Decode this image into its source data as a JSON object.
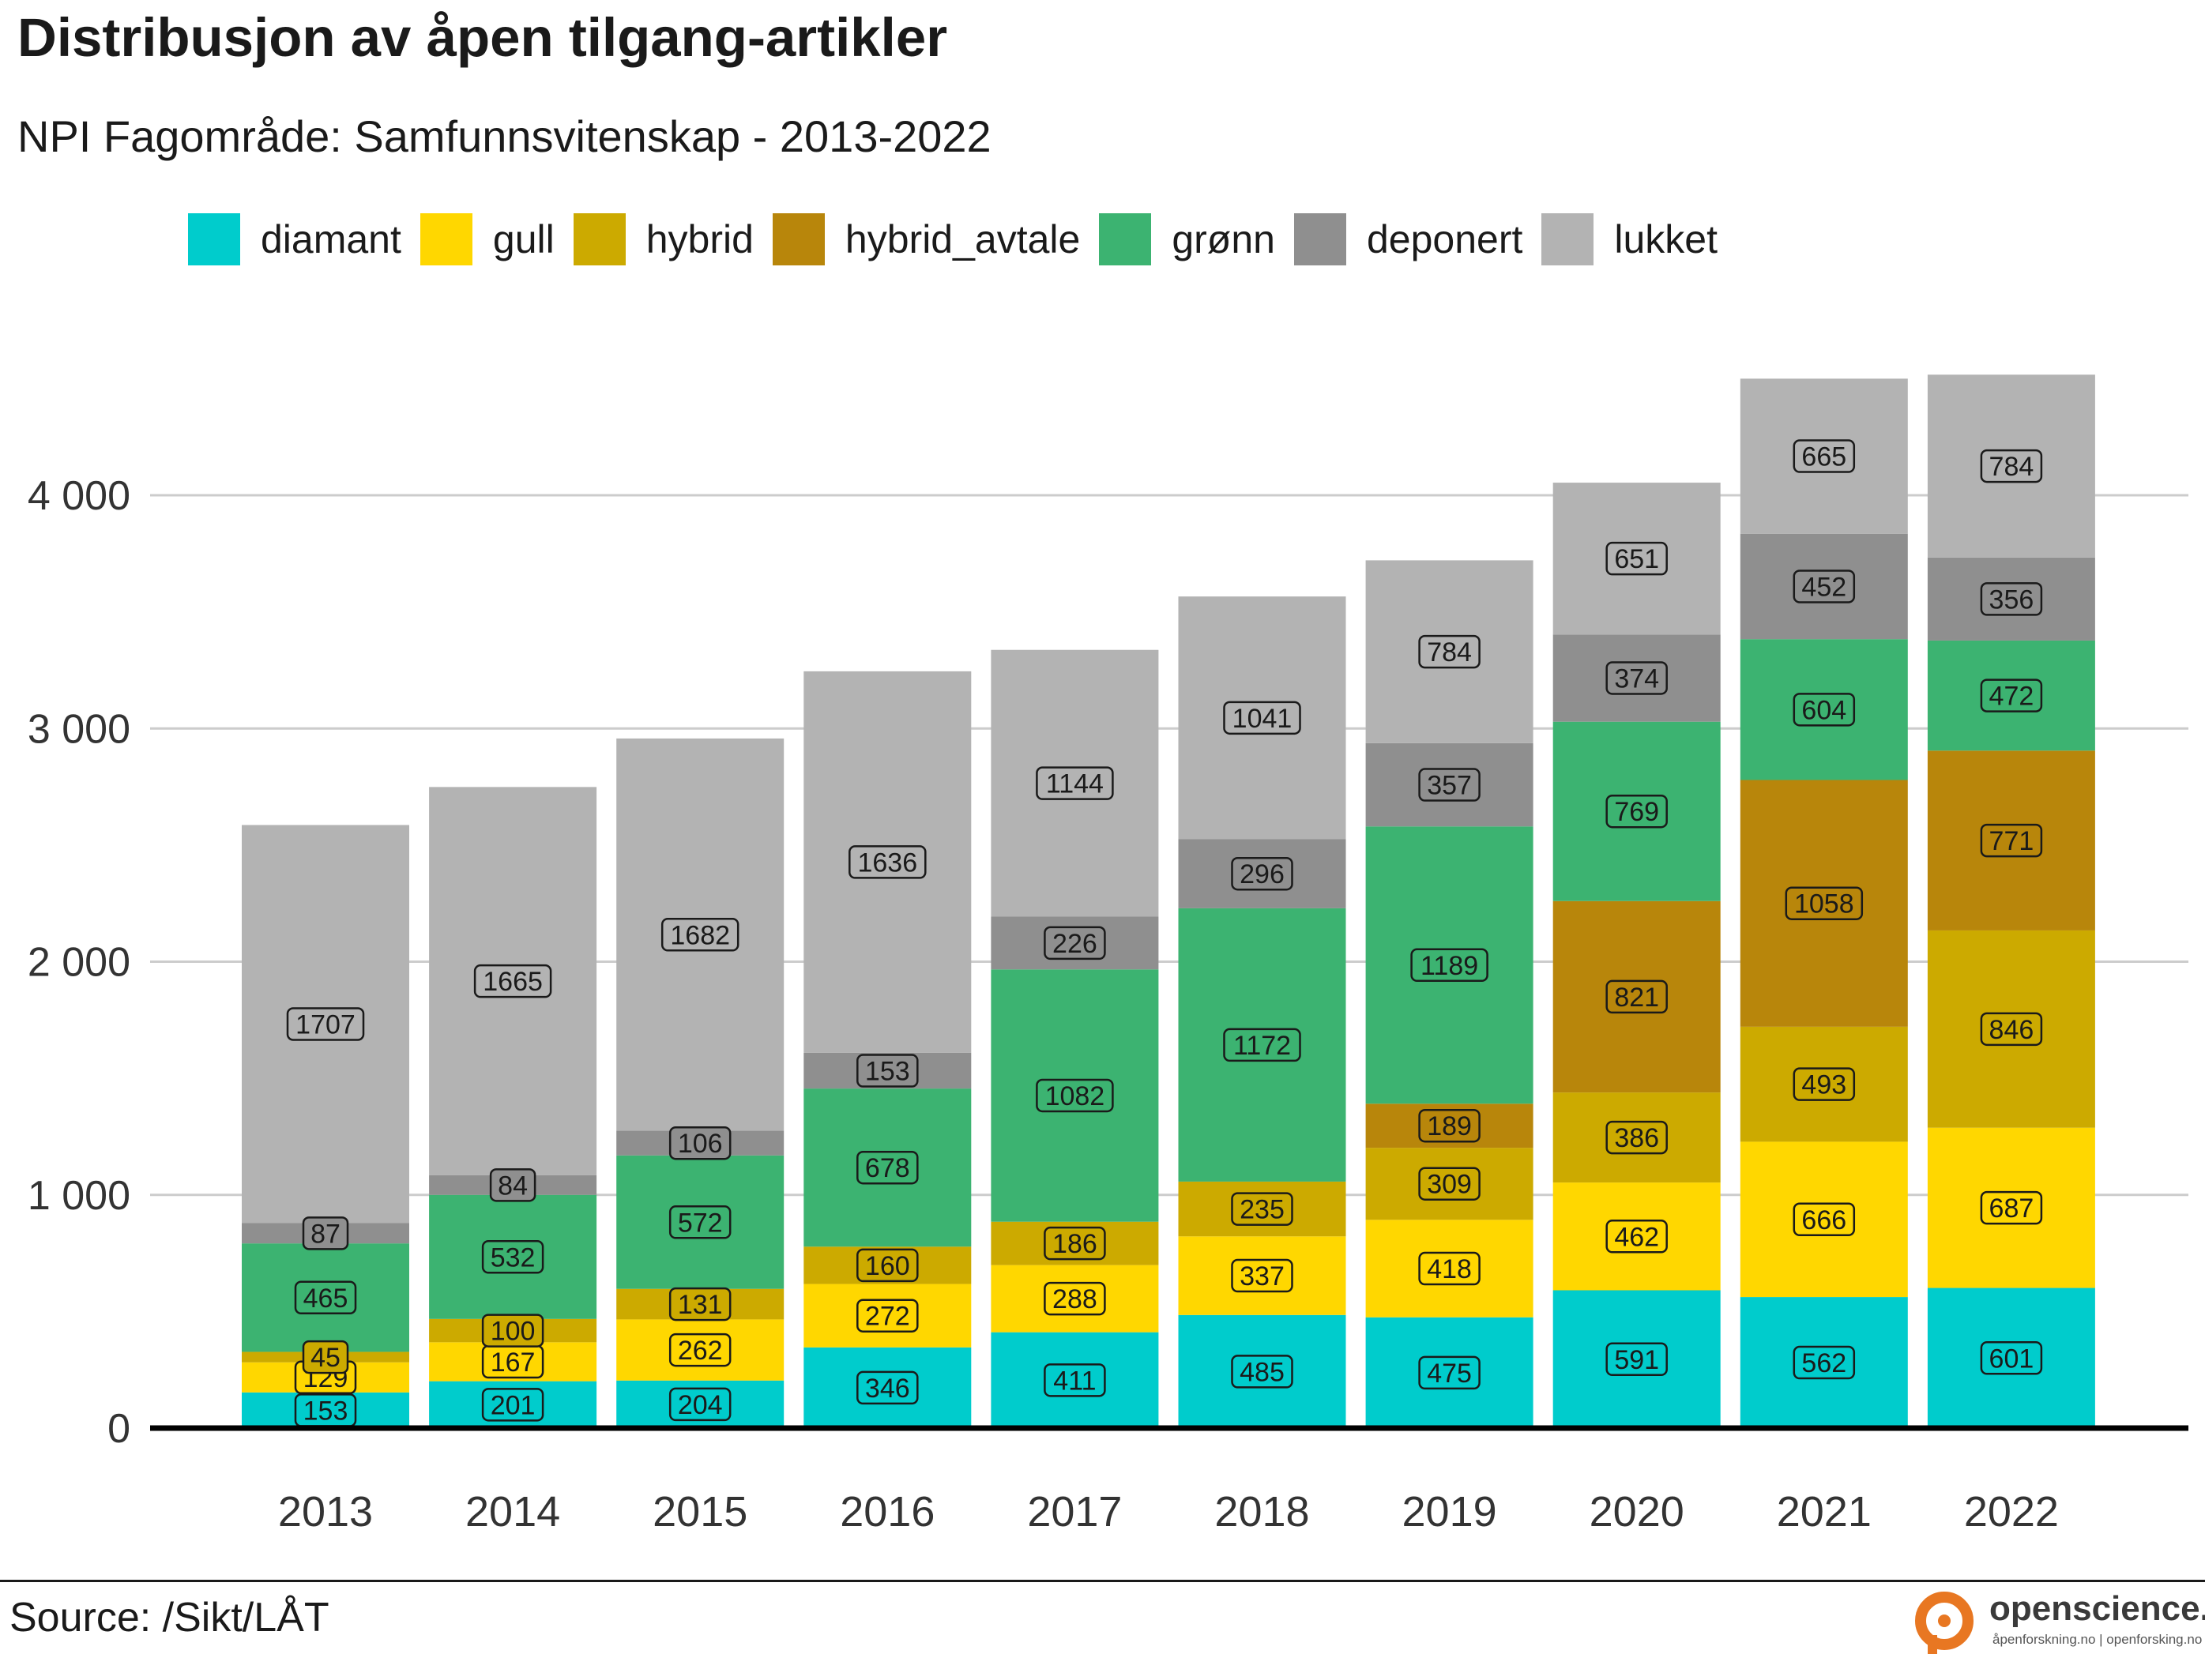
{
  "chart_data": {
    "type": "bar",
    "stacked": true,
    "title": "Distribusjon av åpen tilgang-artikler",
    "subtitle": "NPI Fagområde: Samfunnsvitenskap - 2013-2022",
    "source": "Source: /Sikt/LÅT",
    "categories": [
      "2013",
      "2014",
      "2015",
      "2016",
      "2017",
      "2018",
      "2019",
      "2020",
      "2021",
      "2022"
    ],
    "series": [
      {
        "name": "diamant",
        "color": "#00CCCC",
        "values": [
          153,
          201,
          204,
          346,
          411,
          485,
          475,
          591,
          562,
          601
        ]
      },
      {
        "name": "gull",
        "color": "#FFD700",
        "values": [
          129,
          167,
          262,
          272,
          288,
          337,
          418,
          462,
          666,
          687
        ]
      },
      {
        "name": "hybrid",
        "color": "#CCAA00",
        "values": [
          45,
          100,
          131,
          160,
          186,
          235,
          309,
          386,
          493,
          846
        ]
      },
      {
        "name": "hybrid_avtale",
        "color": "#B8860B",
        "values": [
          0,
          0,
          0,
          0,
          0,
          0,
          189,
          821,
          1058,
          771
        ]
      },
      {
        "name": "grønn",
        "color": "#3CB371",
        "values": [
          465,
          532,
          572,
          678,
          1082,
          1172,
          1189,
          769,
          604,
          472
        ]
      },
      {
        "name": "deponert",
        "color": "#8F8F8F",
        "values": [
          87,
          84,
          106,
          153,
          226,
          296,
          357,
          374,
          452,
          356
        ]
      },
      {
        "name": "lukket",
        "color": "#B3B3B3",
        "values": [
          1707,
          1665,
          1682,
          1636,
          1144,
          1041,
          784,
          651,
          665,
          784
        ]
      }
    ],
    "yticks": [
      0,
      1000,
      2000,
      3000,
      4000
    ],
    "ytick_labels": [
      "0",
      "1 000",
      "2 000",
      "3 000",
      "4 000"
    ],
    "ylim": [
      0,
      4650
    ],
    "grid": "horizontal",
    "legend_position": "top"
  },
  "brand": {
    "name": "openscience.no",
    "tagline": "åpenforskning.no | openforsking.no",
    "color": "#E87722",
    "icon": "open-access-lock-icon"
  }
}
